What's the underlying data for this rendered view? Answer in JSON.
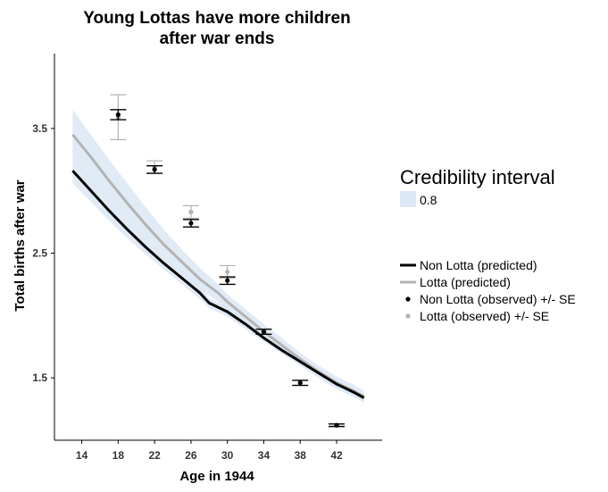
{
  "chart_data": {
    "type": "line",
    "title": [
      "Young Lottas have more children",
      "after war ends"
    ],
    "xlabel": "Age in 1944",
    "ylabel": "Total births after war",
    "xlim": [
      11,
      47
    ],
    "ylim": [
      1.0,
      4.1
    ],
    "xticks": [
      14,
      18,
      22,
      26,
      30,
      34,
      38,
      42
    ],
    "yticks": [
      1.5,
      2.5,
      3.5
    ],
    "ytick_labels": [
      "1.5",
      "2.5",
      "3.5"
    ],
    "grid": false,
    "legend": {
      "ribbon_title": "Credibility interval",
      "ribbon_label": "0.8",
      "entries": [
        {
          "label": "Non Lotta (predicted)",
          "kind": "line",
          "color": "#000000"
        },
        {
          "label": "Lotta (predicted)",
          "kind": "line",
          "color": "#b3b3b3"
        },
        {
          "label": "Non Lotta (observed) +/- SE",
          "kind": "point",
          "color": "#000000"
        },
        {
          "label": "Lotta (observed) +/- SE",
          "kind": "point",
          "color": "#b3b3b3"
        }
      ]
    },
    "ribbon_color": "#dce8f5",
    "series": [
      {
        "name": "Non Lotta (predicted)",
        "color": "#000000",
        "x": [
          13,
          15,
          17,
          19,
          21,
          23,
          25,
          27,
          28,
          30,
          32,
          34,
          36,
          38,
          40,
          42,
          44,
          45
        ],
        "y": [
          3.16,
          3.0,
          2.84,
          2.69,
          2.55,
          2.42,
          2.3,
          2.18,
          2.1,
          2.03,
          1.93,
          1.82,
          1.72,
          1.63,
          1.54,
          1.45,
          1.38,
          1.34
        ],
        "lower": [
          3.06,
          2.91,
          2.76,
          2.62,
          2.49,
          2.37,
          2.25,
          2.13,
          2.06,
          1.99,
          1.89,
          1.79,
          1.69,
          1.6,
          1.51,
          1.42,
          1.35,
          1.31
        ],
        "upper": [
          3.26,
          3.09,
          2.92,
          2.76,
          2.61,
          2.47,
          2.35,
          2.23,
          2.14,
          2.07,
          1.97,
          1.85,
          1.75,
          1.66,
          1.57,
          1.48,
          1.41,
          1.37
        ]
      },
      {
        "name": "Lotta (predicted)",
        "color": "#b3b3b3",
        "x": [
          13,
          15,
          17,
          19,
          21,
          23,
          25,
          27,
          29,
          30,
          32,
          34,
          36,
          38,
          40,
          42,
          44,
          45
        ],
        "y": [
          3.45,
          3.27,
          3.08,
          2.9,
          2.73,
          2.57,
          2.43,
          2.29,
          2.18,
          2.11,
          1.99,
          1.87,
          1.76,
          1.65,
          1.55,
          1.46,
          1.39,
          1.35
        ],
        "lower": [
          3.25,
          3.08,
          2.91,
          2.75,
          2.6,
          2.46,
          2.33,
          2.21,
          2.11,
          2.05,
          1.93,
          1.81,
          1.7,
          1.6,
          1.5,
          1.41,
          1.34,
          1.3
        ],
        "upper": [
          3.65,
          3.45,
          3.25,
          3.06,
          2.87,
          2.69,
          2.53,
          2.38,
          2.25,
          2.17,
          2.05,
          1.93,
          1.82,
          1.7,
          1.6,
          1.51,
          1.44,
          1.4
        ]
      }
    ],
    "observed": [
      {
        "name": "Non Lotta (observed) +/- SE",
        "color": "#000000",
        "x": [
          18,
          22,
          26,
          30,
          34,
          38,
          42
        ],
        "y": [
          3.61,
          3.17,
          2.74,
          2.28,
          1.87,
          1.46,
          1.12
        ],
        "se": [
          0.04,
          0.03,
          0.03,
          0.03,
          0.02,
          0.02,
          0.01
        ]
      },
      {
        "name": "Lotta (observed) +/- SE",
        "color": "#b3b3b3",
        "x": [
          18,
          22,
          26,
          30
        ],
        "y": [
          3.59,
          3.19,
          2.83,
          2.35
        ],
        "se": [
          0.18,
          0.05,
          0.05,
          0.05
        ]
      }
    ]
  }
}
